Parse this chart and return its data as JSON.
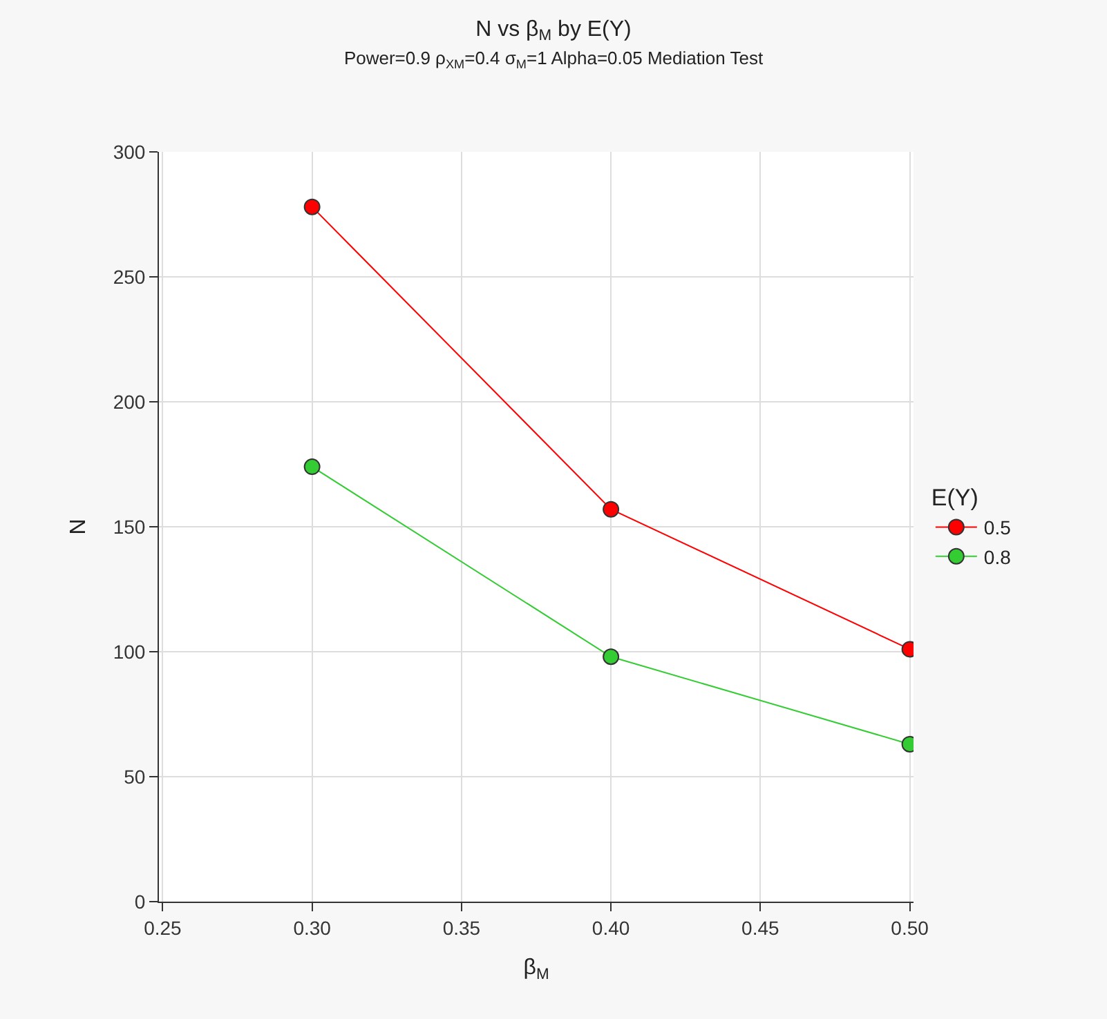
{
  "chart_data": {
    "type": "line",
    "title": "N vs β$_{M}$ by E(Y)",
    "subtitle": "Power=0.9 ρ$_{XM}$=0.4 σ$_{M}$=1 Alpha=0.05 Mediation Test",
    "xlabel": "β$_{M}$",
    "ylabel": "N",
    "legend_title": "E(Y)",
    "x": [
      0.3,
      0.4,
      0.5
    ],
    "series": [
      {
        "name": "0.5",
        "color": "#ff0000",
        "values": [
          278,
          157,
          101
        ]
      },
      {
        "name": "0.8",
        "color": "#33cc33",
        "values": [
          174,
          98,
          63
        ]
      }
    ],
    "xlim": [
      0.25,
      0.5
    ],
    "xticks": [
      {
        "value": 0.25,
        "label": "0.25"
      },
      {
        "value": 0.3,
        "label": "0.30"
      },
      {
        "value": 0.35,
        "label": "0.35"
      },
      {
        "value": 0.4,
        "label": "0.40"
      },
      {
        "value": 0.45,
        "label": "0.45"
      },
      {
        "value": 0.5,
        "label": "0.50"
      }
    ],
    "ylim": [
      0,
      300
    ],
    "yticks": [
      0,
      50,
      100,
      150,
      200,
      250,
      300
    ],
    "grid": true,
    "legend": "right",
    "marker": "circle",
    "line_style": "solid"
  }
}
